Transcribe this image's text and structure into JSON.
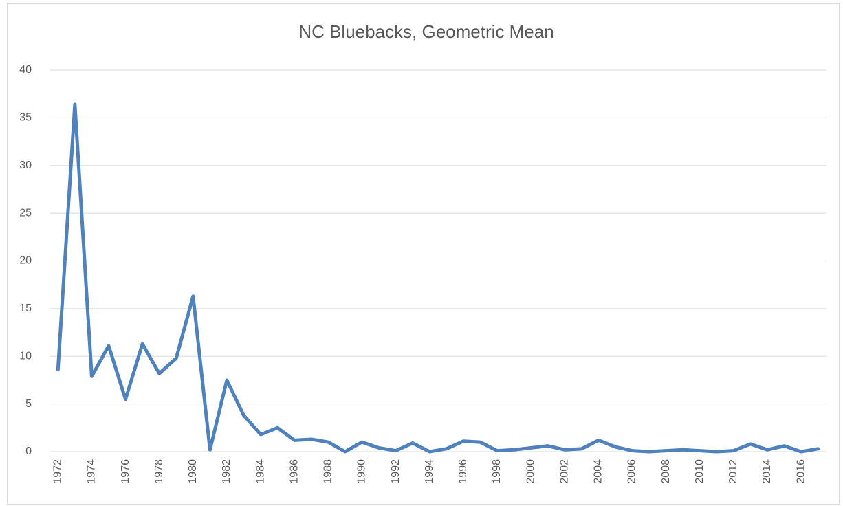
{
  "chart_data": {
    "type": "line",
    "title": "NC Bluebacks, Geometric Mean",
    "categories": [
      "1972",
      null,
      "1974",
      null,
      "1976",
      null,
      "1978",
      null,
      "1980",
      null,
      "1982",
      null,
      "1984",
      null,
      "1986",
      null,
      "1988",
      null,
      "1990",
      null,
      "1992",
      null,
      "1994",
      null,
      "1996",
      null,
      "1998",
      null,
      "2000",
      null,
      "2002",
      null,
      "2004",
      null,
      "2006",
      null,
      "2008",
      null,
      "2010",
      null,
      "2012",
      null,
      "2014",
      null,
      "2016",
      null
    ],
    "series": [
      {
        "color": "#4f81bd",
        "values": [
          8.6,
          36.4,
          7.9,
          11.1,
          5.5,
          11.3,
          8.2,
          9.8,
          16.3,
          0.2,
          7.5,
          3.8,
          1.8,
          2.5,
          1.2,
          1.3,
          1.0,
          0.0,
          1.0,
          0.4,
          0.1,
          0.9,
          0.0,
          0.3,
          1.1,
          1.0,
          0.1,
          0.2,
          0.4,
          0.6,
          0.2,
          0.3,
          1.2,
          0.5,
          0.1,
          0.0,
          0.1,
          0.2,
          0.1,
          0.0,
          0.1,
          0.8,
          0.2,
          0.6,
          0.0,
          0.3
        ]
      }
    ],
    "ylim": [
      0,
      40
    ],
    "yticks": [
      0,
      5,
      10,
      15,
      20,
      25,
      30,
      35,
      40
    ],
    "grid": true
  }
}
